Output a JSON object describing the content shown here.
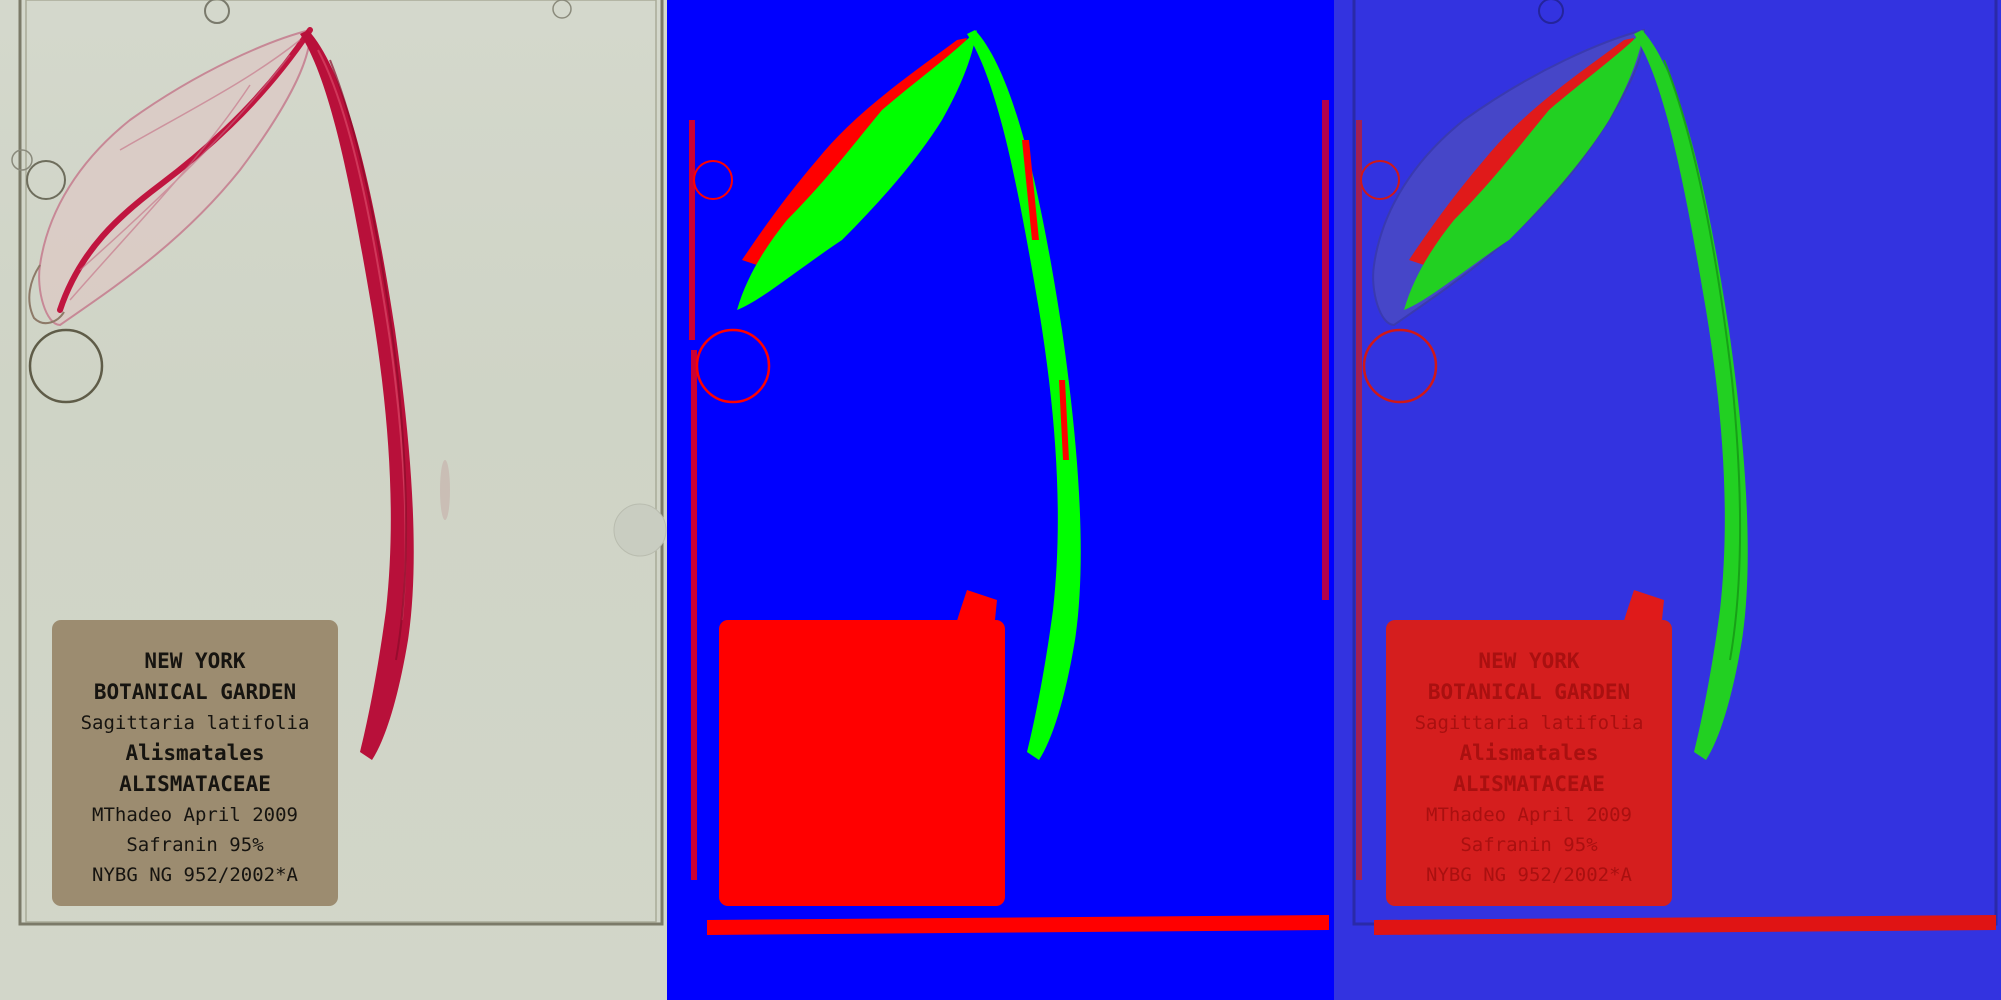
{
  "panels": [
    {
      "name": "original-specimen-photo"
    },
    {
      "name": "segmentation-mask"
    },
    {
      "name": "mask-overlay"
    }
  ],
  "specimen_label": {
    "line1": "NEW YORK",
    "line2": "BOTANICAL GARDEN",
    "line3": "Sagittaria latifolia",
    "line4": "Alismatales",
    "line5": "ALISMATACEAE",
    "line6": "MThadeo April 2009",
    "line7": "Safranin 95%",
    "line8": "NYBG NG 952/2002*A"
  },
  "colors": {
    "mask_background": "#0000ff",
    "mask_foreground": "#00ff00",
    "mask_label": "#ff0000",
    "stain": "#b8103a"
  }
}
